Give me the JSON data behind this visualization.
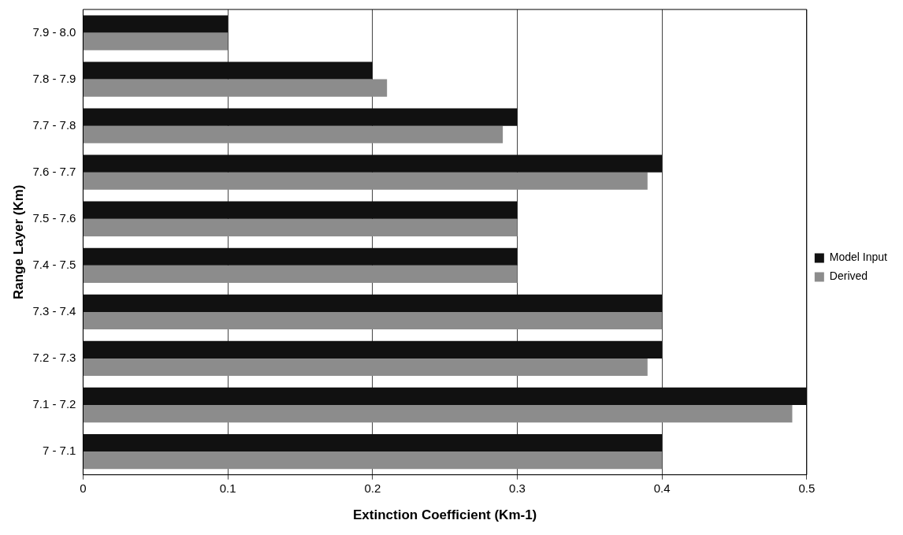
{
  "chart_data": {
    "type": "bar",
    "orientation": "horizontal",
    "xlabel": "Extinction Coefficient (Km-1)",
    "ylabel": "Range Layer (Km)",
    "categories": [
      "7.9 - 8.0",
      "7.8 - 7.9",
      "7.7 - 7.8",
      "7.6 - 7.7",
      "7.5 - 7.6",
      "7.4 - 7.5",
      "7.3 - 7.4",
      "7.2 - 7.3",
      "7.1 - 7.2",
      "7 - 7.1"
    ],
    "series": [
      {
        "name": "Model Input",
        "color": "#111111",
        "values": [
          0.1,
          0.2,
          0.3,
          0.4,
          0.3,
          0.3,
          0.4,
          0.4,
          0.5,
          0.4
        ]
      },
      {
        "name": "Derived",
        "color": "#8c8c8c",
        "values": [
          0.1,
          0.21,
          0.29,
          0.39,
          0.3,
          0.3,
          0.4,
          0.39,
          0.49,
          0.4
        ]
      }
    ],
    "xlim": [
      0,
      0.5
    ],
    "xticks": [
      0,
      0.1,
      0.2,
      0.3,
      0.4,
      0.5
    ],
    "grid": "x",
    "legend": "right"
  }
}
